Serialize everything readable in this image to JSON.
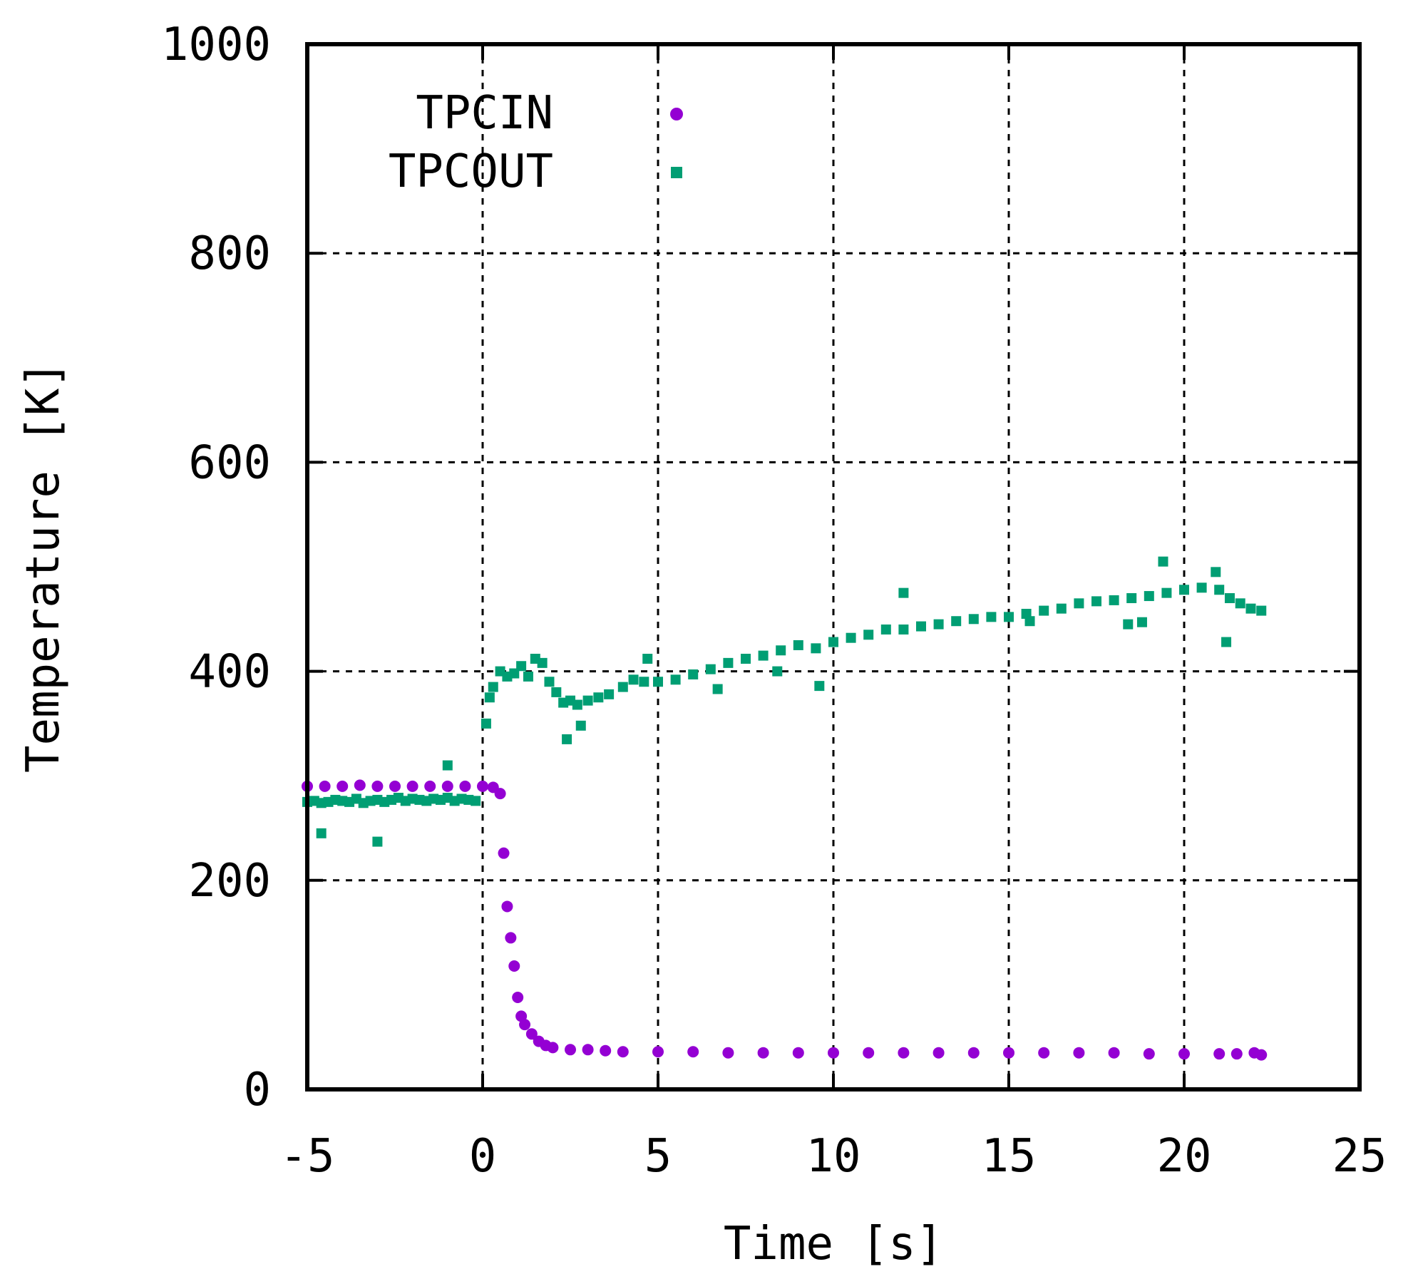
{
  "chart_data": {
    "type": "scatter",
    "xlabel": "Time [s]",
    "ylabel": "Temperature [K]",
    "xlim": [
      -5,
      25
    ],
    "ylim": [
      0,
      1000
    ],
    "xticks": [
      -5,
      0,
      5,
      10,
      15,
      20,
      25
    ],
    "yticks": [
      0,
      200,
      400,
      600,
      800,
      1000
    ],
    "grid": true,
    "legend_position": "top-left",
    "series": [
      {
        "name": "TPCIN",
        "color": "#9400D3",
        "marker": "circle",
        "x": [
          -5.0,
          -4.5,
          -4.0,
          -3.5,
          -3.0,
          -2.5,
          -2.0,
          -1.5,
          -1.0,
          -0.5,
          0.0,
          0.3,
          0.5,
          0.6,
          0.7,
          0.8,
          0.9,
          1.0,
          1.1,
          1.2,
          1.4,
          1.6,
          1.8,
          2.0,
          2.5,
          3.0,
          3.5,
          4.0,
          5.0,
          6.0,
          7.0,
          8.0,
          9.0,
          10.0,
          11.0,
          12.0,
          13.0,
          14.0,
          15.0,
          16.0,
          17.0,
          18.0,
          19.0,
          20.0,
          21.0,
          21.5,
          22.0,
          22.2
        ],
        "y": [
          290,
          290,
          290,
          291,
          290,
          290,
          290,
          290,
          290,
          290,
          290,
          289,
          283,
          226,
          175,
          145,
          118,
          88,
          70,
          62,
          53,
          46,
          42,
          40,
          38,
          38,
          37,
          36,
          36,
          36,
          35,
          35,
          35,
          35,
          35,
          35,
          35,
          35,
          35,
          35,
          35,
          35,
          34,
          34,
          34,
          34,
          35,
          33
        ]
      },
      {
        "name": "TPCOUT",
        "color": "#009E73",
        "marker": "square",
        "x": [
          -5.0,
          -4.8,
          -4.6,
          -4.4,
          -4.2,
          -4.0,
          -3.8,
          -3.6,
          -3.4,
          -3.2,
          -3.0,
          -2.8,
          -2.6,
          -2.4,
          -2.2,
          -2.0,
          -1.8,
          -1.6,
          -1.4,
          -1.2,
          -1.0,
          -0.8,
          -0.6,
          -0.4,
          -0.2,
          -4.6,
          -3.0,
          -1.0,
          0.1,
          0.2,
          0.3,
          0.5,
          0.7,
          0.9,
          1.1,
          1.3,
          1.5,
          1.7,
          1.9,
          2.1,
          2.3,
          2.5,
          2.7,
          3.0,
          3.3,
          3.6,
          4.0,
          4.3,
          4.6,
          5.0,
          5.5,
          6.0,
          6.5,
          7.0,
          7.5,
          8.0,
          8.5,
          9.0,
          9.5,
          10.0,
          10.5,
          11.0,
          11.5,
          12.0,
          12.5,
          13.0,
          13.5,
          14.0,
          14.5,
          15.0,
          15.5,
          16.0,
          16.5,
          17.0,
          17.5,
          18.0,
          18.5,
          19.0,
          19.5,
          20.0,
          20.5,
          21.0,
          21.3,
          21.6,
          21.9,
          22.2,
          2.4,
          2.8,
          4.7,
          6.7,
          8.4,
          9.6,
          12.0,
          15.6,
          18.4,
          18.8,
          19.4,
          20.9,
          21.2
        ],
        "y": [
          275,
          276,
          274,
          275,
          277,
          276,
          275,
          278,
          274,
          276,
          277,
          275,
          277,
          279,
          276,
          278,
          277,
          276,
          278,
          277,
          279,
          276,
          278,
          277,
          276,
          245,
          237,
          310,
          350,
          375,
          385,
          400,
          395,
          398,
          405,
          395,
          412,
          408,
          390,
          380,
          370,
          372,
          368,
          372,
          375,
          378,
          385,
          392,
          390,
          390,
          392,
          397,
          402,
          408,
          412,
          415,
          420,
          425,
          422,
          428,
          432,
          435,
          440,
          440,
          443,
          445,
          448,
          450,
          452,
          452,
          455,
          458,
          460,
          465,
          467,
          468,
          470,
          472,
          475,
          478,
          480,
          478,
          470,
          465,
          460,
          458,
          335,
          348,
          412,
          383,
          400,
          386,
          475,
          448,
          445,
          447,
          505,
          495,
          428
        ]
      }
    ]
  }
}
